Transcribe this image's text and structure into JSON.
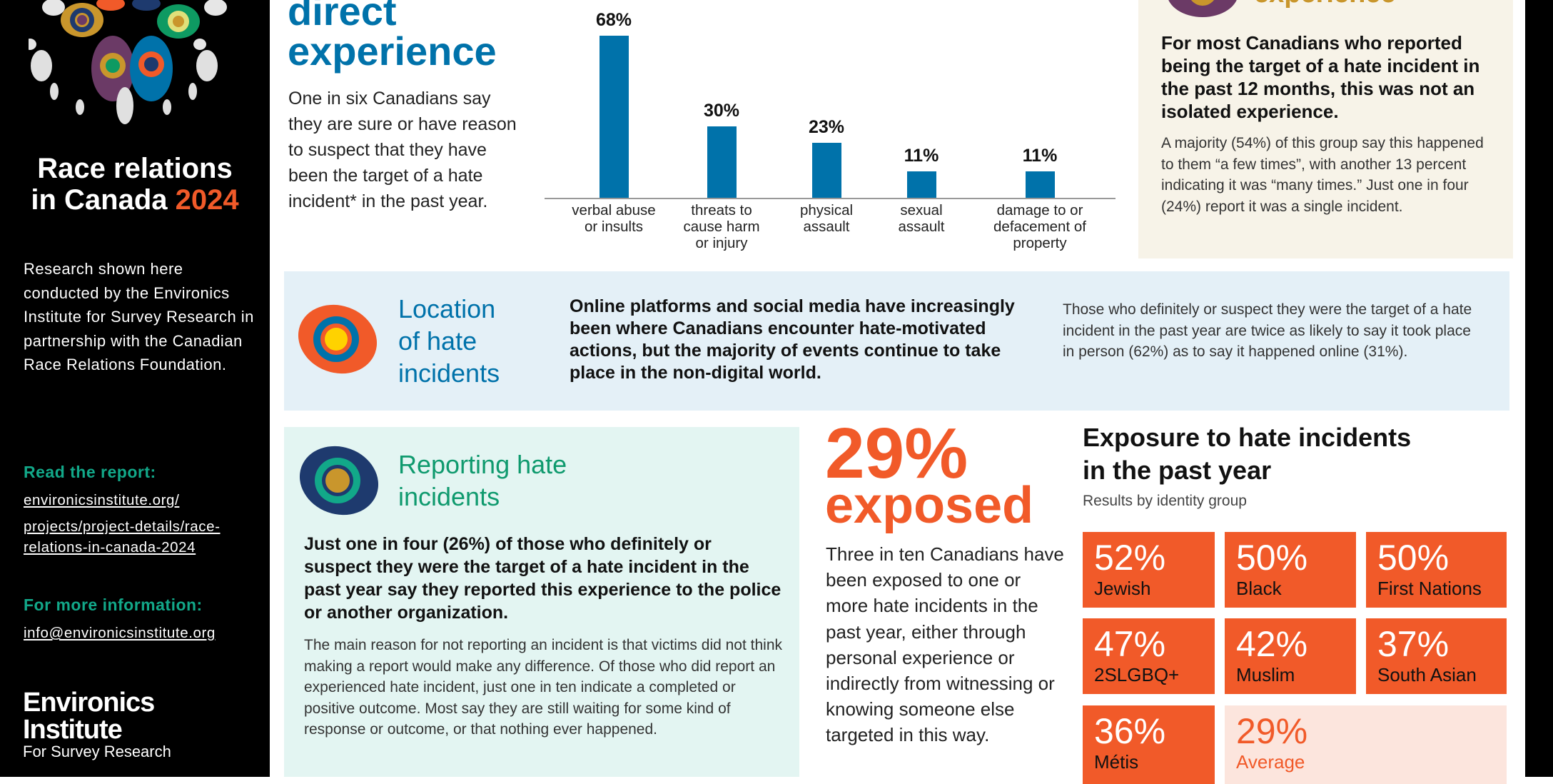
{
  "sidebar": {
    "title_line1": "Race relations",
    "title_line2": "in Canada",
    "title_year": "2024",
    "description": "Research shown here conducted by the Environics Institute for Survey Research in partnership with the Canadian Race Relations Foundation.",
    "read_report_label": "Read the report:",
    "report_link_lines": [
      "environicsinstitute.org/",
      "projects/project-details/race-",
      "relations-in-canada-2024"
    ],
    "more_info_label": "For more information:",
    "email": "info@environicsinstitute.org",
    "logo": {
      "line1": "Environics",
      "line2": "Institute",
      "line3": "For Survey Research"
    },
    "accent_color": "#f15a29",
    "green_color": "#12a889"
  },
  "direct": {
    "heading_line1": "direct",
    "heading_line2": "experience",
    "body": "One in six Canadians say they are sure or have reason to suspect that they have been the target of a hate incident* in the past year."
  },
  "chart_data": {
    "type": "bar",
    "categories": [
      "verbal abuse or insults",
      "threats to cause harm or injury",
      "physical assault",
      "sexual assault",
      "damage to or defacement of property"
    ],
    "category_lines": [
      [
        "verbal abuse",
        "or insults"
      ],
      [
        "threats to",
        "cause harm",
        "or injury"
      ],
      [
        "physical",
        "assault"
      ],
      [
        "sexual",
        "assault"
      ],
      [
        "damage to or",
        "defacement of",
        "property"
      ]
    ],
    "values": [
      68,
      30,
      23,
      11,
      11
    ],
    "data_labels": [
      "68%",
      "30%",
      "23%",
      "11%",
      "11%"
    ],
    "ylim": [
      0,
      68
    ],
    "color": "#0072aa",
    "grid": false
  },
  "repeat": {
    "heading": "experience",
    "bold": "For most Canadians who reported being the target of a hate incident in the past 12 months, this was not an isolated experience.",
    "body": "A majority (54%) of this group say this happened to them “a few times”, with another 13 percent indicating it was “many times.” Just one in four (24%) report it was a single incident."
  },
  "location": {
    "heading_lines": [
      "Location",
      "of hate",
      "incidents"
    ],
    "bold": "Online platforms and social media have increasingly been where Canadians encounter hate-motivated actions, but the majority of events continue to take place in the non-digital world.",
    "body": "Those who definitely or suspect they were the target of a hate incident in the past year are twice as likely to say it took place in person (62%) as to say it happened online (31%)."
  },
  "reporting": {
    "heading_lines": [
      "Reporting hate",
      "incidents"
    ],
    "bold": "Just one in four (26%) of those who definitely or suspect they were the target of a hate incident in the past year say they reported this experience to the police or another organization.",
    "body": "The main reason for not reporting an incident is that victims did not think making a report would make any difference. Of those who did report an experienced hate incident, just one in ten indicate a completed or positive outcome. Most say they are still waiting for some kind of response or outcome, or that nothing ever happened."
  },
  "exposed": {
    "stat": "29%",
    "label": "exposed",
    "body": "Three in ten Canadians have been exposed to one or more hate incidents in the past year, either through personal experience or indirectly from witnessing or knowing someone else targeted in this way."
  },
  "exposure": {
    "title_line1": "Exposure to hate incidents",
    "title_line2": "in the past year",
    "subtitle": "Results by identity group",
    "groups": [
      {
        "value": "52%",
        "label": "Jewish"
      },
      {
        "value": "50%",
        "label": "Black"
      },
      {
        "value": "50%",
        "label": "First Nations"
      },
      {
        "value": "47%",
        "label": "2SLGBQ+"
      },
      {
        "value": "42%",
        "label": "Muslim"
      },
      {
        "value": "37%",
        "label": "South Asian"
      },
      {
        "value": "36%",
        "label": "Métis"
      }
    ],
    "average": {
      "value": "29%",
      "label": "Average"
    }
  }
}
